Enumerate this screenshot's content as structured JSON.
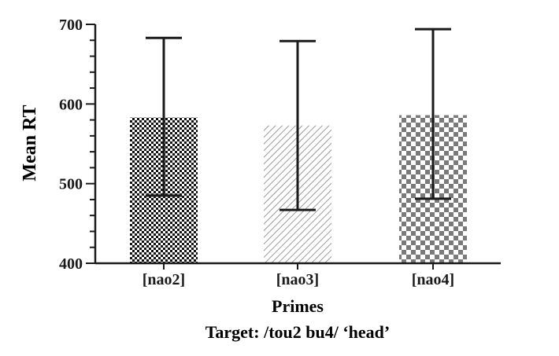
{
  "chart_data": {
    "type": "bar",
    "categories": [
      "[nao2]",
      "[nao3]",
      "[nao4]"
    ],
    "values": [
      583,
      573,
      586
    ],
    "error_upper": [
      683,
      679,
      694
    ],
    "error_lower": [
      485,
      467,
      481
    ],
    "patterns": [
      "fine-checker",
      "diagonal-hatch",
      "coarse-checker"
    ],
    "xlabel": "Primes",
    "caption": "Target: /tou2 bu4/ ‘head’",
    "ylabel": "Mean RT",
    "ylim": [
      400,
      700
    ],
    "yticks": [
      400,
      500,
      600,
      700
    ],
    "grid": false,
    "colors": {
      "axis": "#1a1a1a",
      "pattern_dark": "#111111",
      "pattern_mid": "#7a7a7a",
      "hatch": "#9a9a9a"
    }
  }
}
